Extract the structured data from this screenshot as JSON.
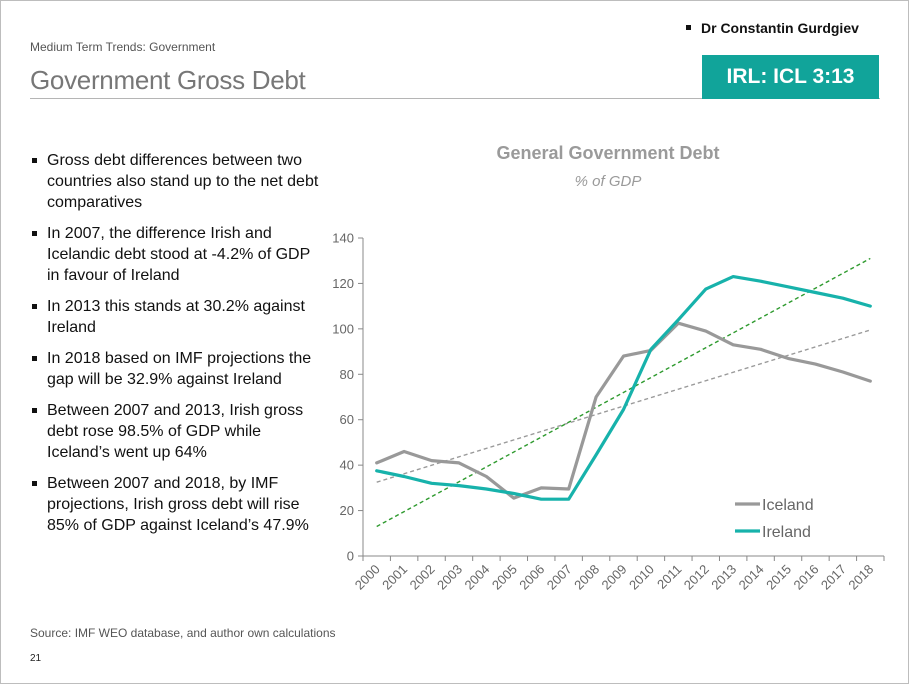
{
  "header": {
    "author": "Dr Constantin Gurdgiev",
    "section": "Medium Term Trends: Government",
    "title": "Government Gross Debt",
    "badge": "IRL: ICL 3:13"
  },
  "bullets": [
    "Gross debt differences between two countries also stand up to the net debt comparatives",
    "In 2007, the difference Irish and Icelandic debt stood at -4.2% of GDP in favour of Ireland",
    "In 2013 this stands at 30.2% against Ireland",
    "In 2018 based on IMF projections the gap will be 32.9% against Ireland",
    "Between 2007 and 2013, Irish gross debt rose 98.5% of GDP while Iceland’s went up 64%",
    "Between 2007 and 2018, by IMF projections, Irish gross debt will rise 85% of GDP against Iceland’s 47.9%"
  ],
  "footer": {
    "source": "Source: IMF WEO database, and author own calculations",
    "page": "21"
  },
  "colors": {
    "iceland": "#999999",
    "ireland": "#17b2ab",
    "trend_iceland": "#9a9a9a",
    "trend_ireland": "#2e9a2e",
    "badge": "#11a49a"
  },
  "chart_data": {
    "type": "line",
    "title": "General Government Debt",
    "subtitle": "% of GDP",
    "xlabel": "",
    "ylabel": "",
    "ylim": [
      0,
      140
    ],
    "yticks": [
      0,
      20,
      40,
      60,
      80,
      100,
      120,
      140
    ],
    "legend_position": "bottom-right",
    "categories": [
      "2000",
      "2001",
      "2002",
      "2003",
      "2004",
      "2005",
      "2006",
      "2007",
      "2008",
      "2009",
      "2010",
      "2011",
      "2012",
      "2013",
      "2014",
      "2015",
      "2016",
      "2017",
      "2018"
    ],
    "series": [
      {
        "name": "Iceland",
        "color": "#999999",
        "values": [
          41,
          46,
          42,
          41,
          35,
          25.5,
          30,
          29.5,
          70,
          88,
          90.5,
          102.5,
          99,
          93,
          91,
          87,
          84.5,
          81,
          77
        ]
      },
      {
        "name": "Ireland",
        "color": "#17b2ab",
        "values": [
          37.5,
          35,
          32,
          31,
          29.5,
          27.5,
          25,
          25,
          44.5,
          64.5,
          91,
          104,
          117.5,
          123,
          121,
          118.5,
          116,
          113.5,
          110
        ]
      }
    ],
    "trendlines": [
      {
        "of": "Iceland",
        "style": "dashed",
        "color": "#9a9a9a",
        "start": 32.5,
        "end": 99.5
      },
      {
        "of": "Ireland",
        "style": "dashed",
        "color": "#2e9a2e",
        "start": 13,
        "end": 131
      }
    ]
  }
}
